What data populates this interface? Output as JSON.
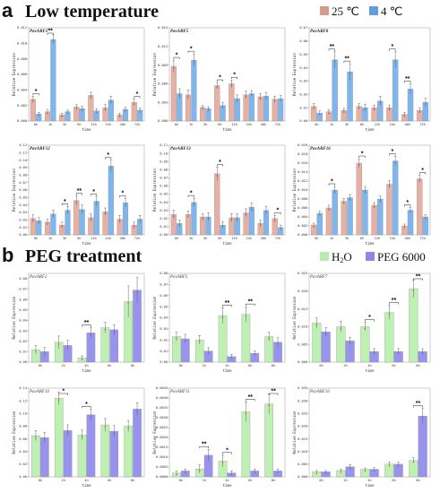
{
  "sections": {
    "a": {
      "letter": "a",
      "title": "Low temperature"
    },
    "b": {
      "letter": "b",
      "title": "PEG treatment"
    }
  },
  "legends": {
    "a": [
      {
        "label": "25 ℃",
        "color": "#d89a86"
      },
      {
        "label": "4 ℃",
        "color": "#5f9ee0"
      }
    ],
    "b": [
      {
        "label": "H",
        "sub": "2",
        "label_end": "O",
        "color": "#b7ecac"
      },
      {
        "label": "PEG 6000",
        "color": "#8b88ea"
      }
    ]
  },
  "colors": {
    "a_series": [
      "#e7b0a4",
      "#7fb6ee"
    ],
    "b_series": [
      "#bff0b3",
      "#9894ee"
    ],
    "error_bar": "#666666",
    "points": [
      "#c0392b",
      "#2e7bd0"
    ]
  },
  "chart_data": [
    {
      "panel": "a",
      "type": "bar",
      "title": "PavARF2",
      "ylabel": "Relative Expression",
      "xlabel": "time",
      "categories": [
        "0h",
        "1h",
        "3h",
        "6h",
        "12h",
        "24h",
        "48h",
        "72h"
      ],
      "yticks": [
        "0.000",
        "0.002",
        "0.004",
        "0.006",
        "0.008",
        "0.010",
        "0.012"
      ],
      "ylim": [
        0,
        0.012
      ],
      "series": [
        {
          "name": "25 ℃",
          "values": [
            0.0028,
            0.0012,
            0.0008,
            0.0018,
            0.0033,
            0.0017,
            0.0008,
            0.0024
          ]
        },
        {
          "name": "4 ℃",
          "values": [
            0.0009,
            0.0105,
            0.0012,
            0.0016,
            0.0013,
            0.0027,
            0.0015,
            0.0014
          ]
        }
      ],
      "errors": [
        [
          0.0004,
          0.0003,
          0.0002,
          0.0003,
          0.0004,
          0.0004,
          0.0002,
          0.0004
        ],
        [
          0.0002,
          0.0006,
          0.0002,
          0.0003,
          0.0003,
          0.0005,
          0.0003,
          0.0003
        ]
      ],
      "significance": [
        {
          "a": 0,
          "b": 1,
          "stars": "*"
        },
        {
          "a": 1,
          "b": 1,
          "stars": "**"
        },
        {
          "a": 7,
          "b": 1,
          "stars": "*"
        }
      ]
    },
    {
      "panel": "a",
      "type": "bar",
      "title": "PavARF5",
      "ylabel": "Relative Expression",
      "xlabel": "time",
      "categories": [
        "0h",
        "1h",
        "3h",
        "6h",
        "12h",
        "24h",
        "48h",
        "72h"
      ],
      "yticks": [
        "0.000",
        "0.003",
        "0.006",
        "0.009",
        "0.012",
        "0.015"
      ],
      "ylim": [
        0,
        0.015
      ],
      "series": [
        {
          "name": "25 ℃",
          "values": [
            0.0088,
            0.0042,
            0.0022,
            0.0057,
            0.006,
            0.0042,
            0.0039,
            0.0035
          ]
        },
        {
          "name": "4 ℃",
          "values": [
            0.0044,
            0.0098,
            0.002,
            0.0025,
            0.0036,
            0.0044,
            0.004,
            0.0036
          ]
        }
      ],
      "errors": [
        [
          0.001,
          0.0008,
          0.0003,
          0.0005,
          0.0006,
          0.0006,
          0.0005,
          0.0005
        ],
        [
          0.0008,
          0.001,
          0.0003,
          0.0005,
          0.0006,
          0.0005,
          0.0006,
          0.0005
        ]
      ],
      "significance": [
        {
          "a": 0,
          "b": 1,
          "stars": "*"
        },
        {
          "a": 1,
          "b": 1,
          "stars": "*"
        },
        {
          "a": 3,
          "b": 1,
          "stars": "*"
        },
        {
          "a": 4,
          "b": 1,
          "stars": "*"
        }
      ]
    },
    {
      "panel": "a",
      "type": "bar",
      "title": "PavARF8",
      "ylabel": "Relative Expression",
      "xlabel": "time",
      "categories": [
        "0h",
        "1h",
        "3h",
        "6h",
        "12h",
        "24h",
        "48h",
        "72h"
      ],
      "yticks": [
        "0.00",
        "0.01",
        "0.02",
        "0.03",
        "0.04",
        "0.05",
        "0.06",
        "0.07"
      ],
      "ylim": [
        0,
        0.07
      ],
      "series": [
        {
          "name": "25 ℃",
          "values": [
            0.011,
            0.007,
            0.008,
            0.011,
            0.01,
            0.01,
            0.005,
            0.008
          ]
        },
        {
          "name": "4 ℃",
          "values": [
            0.006,
            0.046,
            0.037,
            0.01,
            0.015,
            0.046,
            0.024,
            0.014
          ]
        }
      ],
      "errors": [
        [
          0.002,
          0.0015,
          0.0015,
          0.002,
          0.002,
          0.002,
          0.0015,
          0.002
        ],
        [
          0.0015,
          0.006,
          0.006,
          0.0025,
          0.0035,
          0.006,
          0.004,
          0.003
        ]
      ],
      "significance": [
        {
          "a": 1,
          "b": 1,
          "stars": "**"
        },
        {
          "a": 2,
          "b": 1,
          "stars": "**"
        },
        {
          "a": 5,
          "b": 1,
          "stars": "*"
        },
        {
          "a": 6,
          "b": 1,
          "stars": "**"
        }
      ]
    },
    {
      "panel": "a",
      "type": "bar",
      "title": "PavARF12",
      "ylabel": "Relative Expression",
      "xlabel": "time",
      "categories": [
        "0h",
        "1h",
        "3h",
        "6h",
        "12h",
        "24h",
        "48h",
        "72h"
      ],
      "yticks": [
        "0.00",
        "0.01",
        "0.02",
        "0.03",
        "0.04",
        "0.05",
        "0.06",
        "0.07",
        "0.08",
        "0.09",
        "0.10",
        "0.11",
        "0.12"
      ],
      "ylim": [
        0,
        0.12
      ],
      "series": [
        {
          "name": "25 ℃",
          "values": [
            0.022,
            0.017,
            0.013,
            0.046,
            0.023,
            0.031,
            0.021,
            0.013
          ]
        },
        {
          "name": "4 ℃",
          "values": [
            0.019,
            0.028,
            0.033,
            0.034,
            0.045,
            0.092,
            0.043,
            0.021
          ]
        }
      ],
      "errors": [
        [
          0.005,
          0.004,
          0.004,
          0.006,
          0.005,
          0.005,
          0.005,
          0.004
        ],
        [
          0.004,
          0.005,
          0.005,
          0.006,
          0.006,
          0.008,
          0.006,
          0.005
        ]
      ],
      "significance": [
        {
          "a": 2,
          "b": 1,
          "stars": "*"
        },
        {
          "a": 3,
          "b": 1,
          "stars": "**"
        },
        {
          "a": 4,
          "b": 1,
          "stars": "*"
        },
        {
          "a": 5,
          "b": 1,
          "stars": "*"
        },
        {
          "a": 6,
          "b": 1,
          "stars": "*"
        }
      ]
    },
    {
      "panel": "a",
      "type": "bar",
      "title": "PavARF13",
      "ylabel": "Relative Expression",
      "xlabel": "time",
      "categories": [
        "0h",
        "1h",
        "3h",
        "6h",
        "12h",
        "24h",
        "48h",
        "72h"
      ],
      "yticks": [
        "0.00",
        "0.01",
        "0.02",
        "0.03",
        "0.04",
        "0.05",
        "0.06",
        "0.07",
        "0.08",
        "0.09",
        "0.10",
        "0.11"
      ],
      "ylim": [
        0,
        0.11
      ],
      "series": [
        {
          "name": "25 ℃",
          "values": [
            0.025,
            0.025,
            0.022,
            0.075,
            0.021,
            0.027,
            0.014,
            0.02
          ]
        },
        {
          "name": "4 ℃",
          "values": [
            0.014,
            0.04,
            0.022,
            0.012,
            0.021,
            0.034,
            0.03,
            0.009
          ]
        }
      ],
      "errors": [
        [
          0.005,
          0.004,
          0.004,
          0.008,
          0.005,
          0.005,
          0.004,
          0.004
        ],
        [
          0.004,
          0.005,
          0.005,
          0.004,
          0.005,
          0.005,
          0.005,
          0.003
        ]
      ],
      "significance": [
        {
          "a": 1,
          "b": 1,
          "stars": "*"
        },
        {
          "a": 3,
          "b": 1,
          "stars": "*"
        },
        {
          "a": 7,
          "b": 1,
          "stars": "*"
        }
      ]
    },
    {
      "panel": "a",
      "type": "bar",
      "title": "PavARF16",
      "ylabel": "Relative Expression",
      "xlabel": "time",
      "categories": [
        "0h",
        "1h",
        "3h",
        "6h",
        "12h",
        "24h",
        "48h",
        "72h"
      ],
      "yticks": [
        "0.000",
        "0.002",
        "0.004",
        "0.006",
        "0.008",
        "0.010",
        "0.012",
        "0.014",
        "0.016",
        "0.018",
        "0.020"
      ],
      "ylim": [
        0,
        0.02
      ],
      "series": [
        {
          "name": "25 ℃",
          "values": [
            0.0022,
            0.006,
            0.0075,
            0.016,
            0.0066,
            0.0113,
            0.002,
            0.0125
          ]
        },
        {
          "name": "4 ℃",
          "values": [
            0.0048,
            0.01,
            0.0083,
            0.01,
            0.008,
            0.0165,
            0.0055,
            0.004
          ]
        }
      ],
      "errors": [
        [
          0.0004,
          0.0006,
          0.0006,
          0.001,
          0.0006,
          0.0008,
          0.0004,
          0.0008
        ],
        [
          0.0005,
          0.0008,
          0.0007,
          0.0008,
          0.0007,
          0.001,
          0.0006,
          0.0005
        ]
      ],
      "significance": [
        {
          "a": 1,
          "b": 1,
          "stars": "*"
        },
        {
          "a": 3,
          "b": 1,
          "stars": "*"
        },
        {
          "a": 5,
          "b": 1,
          "stars": "*"
        },
        {
          "a": 6,
          "b": 1,
          "stars": "*"
        },
        {
          "a": 7,
          "b": 1,
          "stars": "*"
        }
      ]
    },
    {
      "panel": "b",
      "type": "bar",
      "title": "PavARF2",
      "ylabel": "Relative Expression",
      "xlabel": "time",
      "categories": [
        "0h",
        "2h",
        "4h",
        "6h",
        "8h"
      ],
      "yticks": [
        "0.00",
        "0.01",
        "0.02",
        "0.03",
        "0.04",
        "0.05",
        "0.06",
        "0.07",
        "0.08"
      ],
      "ylim": [
        0,
        0.085
      ],
      "series": [
        {
          "name": "H₂O",
          "values": [
            0.012,
            0.019,
            0.004,
            0.033,
            0.058
          ]
        },
        {
          "name": "PEG 6000",
          "values": [
            0.01,
            0.016,
            0.028,
            0.031,
            0.069
          ]
        }
      ],
      "errors": [
        [
          0.004,
          0.006,
          0.002,
          0.005,
          0.015
        ],
        [
          0.004,
          0.005,
          0.005,
          0.005,
          0.012
        ]
      ],
      "significance": [
        {
          "a": 2,
          "b": 1,
          "stars": "**"
        }
      ]
    },
    {
      "panel": "b",
      "type": "bar",
      "title": "PavARF5",
      "ylabel": "Relative Expression",
      "xlabel": "time",
      "categories": [
        "0h",
        "2h",
        "4h",
        "6h",
        "8h"
      ],
      "yticks": [
        "0.00",
        "0.01",
        "0.02",
        "0.03",
        "0.04",
        "0.05",
        "0.06",
        "0.07",
        "0.08"
      ],
      "ylim": [
        0,
        0.08
      ],
      "series": [
        {
          "name": "H₂O",
          "values": [
            0.023,
            0.02,
            0.042,
            0.043,
            0.023
          ]
        },
        {
          "name": "PEG 6000",
          "values": [
            0.021,
            0.01,
            0.005,
            0.008,
            0.018
          ]
        }
      ],
      "errors": [
        [
          0.004,
          0.004,
          0.007,
          0.007,
          0.004
        ],
        [
          0.004,
          0.003,
          0.002,
          0.002,
          0.004
        ]
      ],
      "significance": [
        {
          "a": 2,
          "b": 1,
          "stars": "**"
        },
        {
          "a": 3,
          "b": 1,
          "stars": "**"
        }
      ]
    },
    {
      "panel": "b",
      "type": "bar",
      "title": "PavARF7",
      "ylabel": "Relative Expression",
      "xlabel": "time",
      "categories": [
        "0h",
        "2h",
        "4h",
        "6h",
        "8h"
      ],
      "yticks": [
        "0.000",
        "0.005",
        "0.010",
        "0.015",
        "0.020",
        "0.025"
      ],
      "ylim": [
        0,
        0.025
      ],
      "series": [
        {
          "name": "H₂O",
          "values": [
            0.011,
            0.01,
            0.01,
            0.014,
            0.0207
          ]
        },
        {
          "name": "PEG 6000",
          "values": [
            0.0085,
            0.006,
            0.003,
            0.003,
            0.003
          ]
        }
      ],
      "errors": [
        [
          0.0015,
          0.0015,
          0.0012,
          0.002,
          0.0025
        ],
        [
          0.0012,
          0.001,
          0.0008,
          0.0008,
          0.0008
        ]
      ],
      "significance": [
        {
          "a": 2,
          "b": 1,
          "stars": "*"
        },
        {
          "a": 3,
          "b": 1,
          "stars": "**"
        },
        {
          "a": 4,
          "b": 1,
          "stars": "**"
        }
      ]
    },
    {
      "panel": "b",
      "type": "bar",
      "title": "PavARF10",
      "ylabel": "Relative Expression",
      "xlabel": "time",
      "categories": [
        "0h",
        "2h",
        "4h",
        "6h",
        "8h"
      ],
      "yticks": [
        "0.00",
        "0.02",
        "0.04",
        "0.06",
        "0.08",
        "0.10",
        "0.12",
        "0.14"
      ],
      "ylim": [
        0,
        0.14
      ],
      "series": [
        {
          "name": "H₂O",
          "values": [
            0.065,
            0.124,
            0.066,
            0.082,
            0.08
          ]
        },
        {
          "name": "PEG 6000",
          "values": [
            0.062,
            0.073,
            0.098,
            0.072,
            0.107
          ]
        }
      ],
      "errors": [
        [
          0.008,
          0.01,
          0.008,
          0.01,
          0.009
        ],
        [
          0.008,
          0.009,
          0.009,
          0.009,
          0.01
        ]
      ],
      "significance": [
        {
          "a": 1,
          "b": 1,
          "stars": "*"
        },
        {
          "a": 2,
          "b": 1,
          "stars": "*"
        }
      ]
    },
    {
      "panel": "b",
      "type": "bar",
      "title": "PavARF11",
      "ylabel": "Relative Expression",
      "xlabel": "time",
      "categories": [
        "0h",
        "2h",
        "4h",
        "6h",
        "8h"
      ],
      "yticks": [
        "0.0000",
        "0.0005",
        "0.0010",
        "0.0015",
        "0.0020",
        "0.0025",
        "0.0030",
        "0.0035",
        "0.0040",
        "0.0045"
      ],
      "ylim": [
        0,
        0.0045
      ],
      "series": [
        {
          "name": "H₂O",
          "values": [
            0.0002,
            0.0004,
            0.0008,
            0.0033,
            0.0037
          ]
        },
        {
          "name": "PEG 6000",
          "values": [
            0.0003,
            0.0011,
            0.0002,
            0.0003,
            0.0003
          ]
        }
      ],
      "errors": [
        [
          0.0001,
          0.0002,
          0.0003,
          0.0005,
          0.0005
        ],
        [
          0.0001,
          0.0003,
          0.0001,
          0.0001,
          0.0001
        ]
      ],
      "significance": [
        {
          "a": 1,
          "b": 1,
          "stars": "**"
        },
        {
          "a": 2,
          "b": 1,
          "stars": "*"
        },
        {
          "a": 3,
          "b": 1,
          "stars": "**"
        },
        {
          "a": 4,
          "b": 1,
          "stars": "**"
        }
      ]
    },
    {
      "panel": "b",
      "type": "bar",
      "title": "PavARF16",
      "ylabel": "Relative Expression",
      "xlabel": "time",
      "categories": [
        "0h",
        "2h",
        "4h",
        "6h",
        "8h"
      ],
      "yticks": [
        "0.000",
        "0.005",
        "0.010",
        "0.015",
        "0.020",
        "0.025",
        "0.030",
        "0.035"
      ],
      "ylim": [
        0,
        0.035
      ],
      "series": [
        {
          "name": "H₂O",
          "values": [
            0.002,
            0.0025,
            0.003,
            0.005,
            0.0065
          ]
        },
        {
          "name": "PEG 6000",
          "values": [
            0.002,
            0.004,
            0.003,
            0.005,
            0.024
          ]
        }
      ],
      "errors": [
        [
          0.0005,
          0.0005,
          0.0005,
          0.0008,
          0.001
        ],
        [
          0.0005,
          0.0008,
          0.0006,
          0.0008,
          0.003
        ]
      ],
      "significance": [
        {
          "a": 4,
          "b": 1,
          "stars": "**"
        }
      ]
    }
  ]
}
